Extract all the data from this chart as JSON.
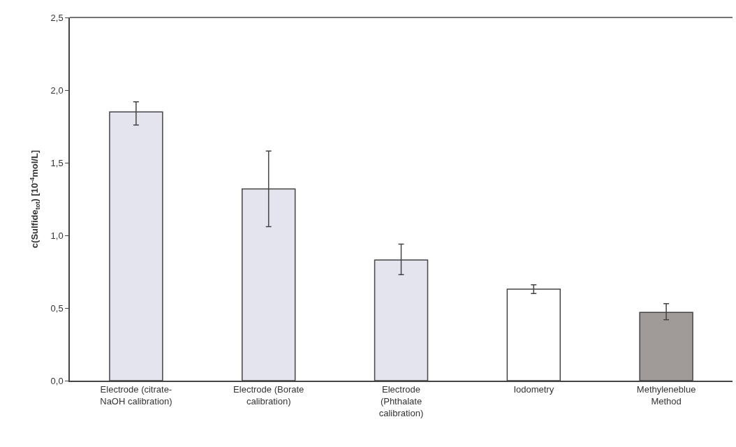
{
  "chart_data": {
    "type": "bar",
    "ylabel": "c(Sulfide$_{tot}$) [10$^{-4}$mol/L]",
    "categories": [
      "Electrode (citrate-NaOH calibration)",
      "Electrode (Borate calibration)",
      "Electrode (Phthalate calibration)",
      "Iodometry",
      "Methyleneblue Method"
    ],
    "values": [
      1.85,
      1.32,
      0.83,
      0.63,
      0.47
    ],
    "errors": [
      [
        1.76,
        1.92
      ],
      [
        1.06,
        1.58
      ],
      [
        0.73,
        0.94
      ],
      [
        0.6,
        0.66
      ],
      [
        0.42,
        0.53
      ]
    ],
    "colors": [
      "#e4e4ee",
      "#e4e4ee",
      "#e4e4ee",
      "#ffffff",
      "#a09a98"
    ],
    "ylim": [
      0,
      2.5
    ],
    "yticks": [
      {
        "value": 0,
        "label": "0,0"
      },
      {
        "value": 0.5,
        "label": "0,5"
      },
      {
        "value": 1,
        "label": "1,0"
      },
      {
        "value": 1.5,
        "label": "1,5"
      },
      {
        "value": 2,
        "label": "2,0"
      },
      {
        "value": 2.5,
        "label": "2,5"
      }
    ]
  }
}
